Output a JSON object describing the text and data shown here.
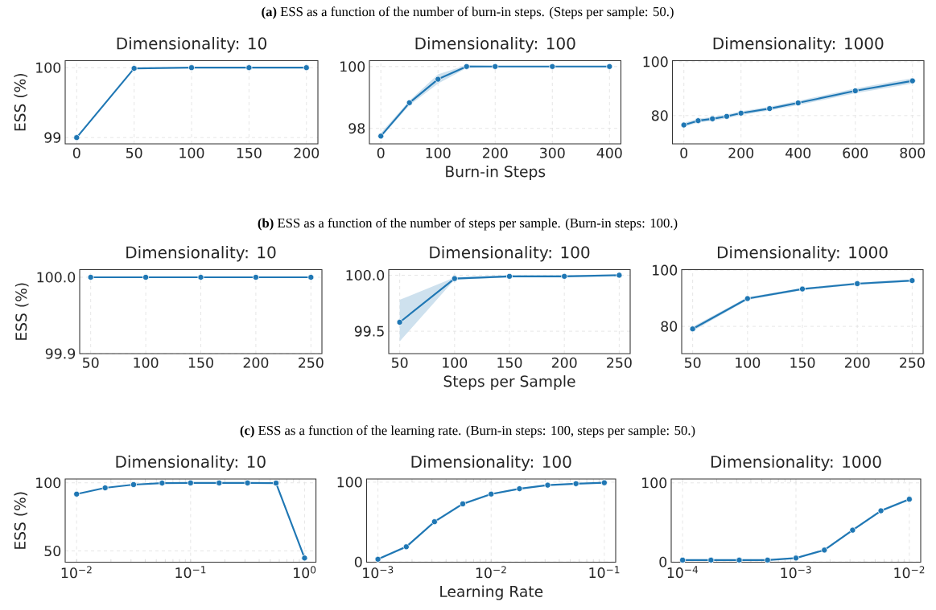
{
  "chart_data": [
    {
      "type": "line",
      "title": "Dimensionality: 10",
      "ylabel": "ESS (%)",
      "annotations": [
        "**(a)** ESS as a function of the number of burn-in steps. (Steps per sample: 50.)"
      ],
      "x": [
        0,
        50,
        100,
        150,
        200
      ],
      "xlim": [
        -10,
        210
      ],
      "ylim": [
        98.91,
        100.1
      ],
      "xticks": [
        0,
        50,
        100,
        150,
        200
      ],
      "yticks": [
        99,
        100
      ],
      "grid": true,
      "marker": "circle",
      "series": [
        {
          "color": "#1f77b4",
          "values": [
            99.0,
            99.99,
            100.0,
            100.0,
            100.0
          ]
        }
      ]
    },
    {
      "type": "line",
      "title": "Dimensionality: 100",
      "xlabel": "Burn-in Steps",
      "x": [
        0,
        50,
        100,
        150,
        200,
        300,
        400
      ],
      "xlim": [
        -20,
        420
      ],
      "ylim": [
        97.5,
        100.19
      ],
      "xticks": [
        0,
        100,
        200,
        300,
        400
      ],
      "yticks": [
        98,
        100
      ],
      "grid": true,
      "marker": "circle",
      "series": [
        {
          "color": "#1f77b4",
          "values": [
            97.75,
            98.83,
            99.59,
            100.0,
            100.0,
            100.0,
            100.0
          ],
          "lower": [
            97.7,
            98.75,
            99.45,
            99.95,
            99.98,
            99.98,
            99.98
          ],
          "upper": [
            97.85,
            98.9,
            99.75,
            100.05,
            100.02,
            100.02,
            100.02
          ]
        }
      ]
    },
    {
      "type": "line",
      "title": "Dimensionality: 1000",
      "x": [
        0,
        50,
        100,
        150,
        200,
        300,
        400,
        600,
        800
      ],
      "xlim": [
        -40,
        840
      ],
      "ylim": [
        69.5,
        100.4
      ],
      "xticks": [
        0,
        200,
        400,
        600,
        800
      ],
      "yticks": [
        80,
        100
      ],
      "grid": true,
      "marker": "circle",
      "series": [
        {
          "color": "#1f77b4",
          "values": [
            76.5,
            78.1,
            78.8,
            79.7,
            80.9,
            82.6,
            84.7,
            89.2,
            92.9
          ],
          "lower": [
            75.8,
            77.4,
            78.1,
            79.0,
            80.2,
            81.9,
            83.9,
            88.3,
            91.9
          ],
          "upper": [
            77.3,
            78.8,
            79.5,
            80.4,
            81.6,
            83.3,
            85.5,
            90.1,
            93.9
          ]
        }
      ]
    },
    {
      "type": "line",
      "title": "Dimensionality: 10",
      "ylabel": "ESS (%)",
      "annotations": [
        "**(b)** ESS as a function of the number of steps per sample. (Burn-in steps: 100.)"
      ],
      "x": [
        50,
        100,
        150,
        200,
        250
      ],
      "xlim": [
        40,
        260
      ],
      "ylim": [
        99.9,
        100.01
      ],
      "xticks": [
        50,
        100,
        150,
        200,
        250
      ],
      "yticks": [
        {
          "value": 99.9,
          "label": "99.9"
        },
        {
          "value": 100,
          "label": "100.0"
        }
      ],
      "grid": true,
      "marker": "circle",
      "series": [
        {
          "color": "#1f77b4",
          "values": [
            100.0,
            100.0,
            100.0,
            100.0,
            100.0
          ]
        }
      ]
    },
    {
      "type": "line",
      "title": "Dimensionality: 100",
      "xlabel": "Steps per Sample",
      "x": [
        50,
        100,
        150,
        200,
        250
      ],
      "xlim": [
        40,
        260
      ],
      "ylim": [
        99.3,
        100.05
      ],
      "xticks": [
        50,
        100,
        150,
        200,
        250
      ],
      "yticks": [
        {
          "value": 99.5,
          "label": "99.5"
        },
        {
          "value": 100,
          "label": "100.0"
        }
      ],
      "grid": true,
      "marker": "circle",
      "series": [
        {
          "color": "#1f77b4",
          "values": [
            99.58,
            99.97,
            99.99,
            99.99,
            100.0
          ],
          "lower": [
            99.41,
            99.96,
            99.98,
            99.98,
            99.99
          ],
          "upper": [
            99.78,
            99.98,
            100.0,
            100.0,
            100.01
          ]
        }
      ]
    },
    {
      "type": "line",
      "title": "Dimensionality: 1000",
      "x": [
        50,
        100,
        150,
        200,
        250
      ],
      "xlim": [
        40,
        260
      ],
      "ylim": [
        70.3,
        100.2
      ],
      "xticks": [
        50,
        100,
        150,
        200,
        250
      ],
      "yticks": [
        80,
        100
      ],
      "grid": true,
      "marker": "circle",
      "series": [
        {
          "color": "#1f77b4",
          "values": [
            79.1,
            89.9,
            93.3,
            95.2,
            96.3
          ],
          "lower": [
            78.3,
            89.4,
            92.9,
            94.8,
            95.9
          ],
          "upper": [
            79.9,
            90.4,
            93.7,
            95.6,
            96.7
          ]
        }
      ]
    },
    {
      "type": "line",
      "title": "Dimensionality: 10",
      "ylabel": "ESS (%)",
      "annotations": [
        "**(c)** ESS as a function of the learning rate. (Burn-in steps: 100, steps per sample: 50.)"
      ],
      "log": "x",
      "x": [
        0.01,
        0.0178,
        0.0316,
        0.0562,
        0.1,
        0.178,
        0.316,
        0.562,
        1.0
      ],
      "xlim": [
        0.00794,
        1.259
      ],
      "ylim": [
        41.7,
        102.8
      ],
      "xticks": [
        {
          "value": 0.01,
          "label": "10$^{−2}$"
        },
        {
          "value": 0.1,
          "label": "10$^{−1}$"
        },
        {
          "value": 1,
          "label": "10$^{0}$"
        }
      ],
      "yticks": [
        50,
        100
      ],
      "grid": true,
      "marker": "circle",
      "series": [
        {
          "color": "#1f77b4",
          "values": [
            91.7,
            96.3,
            98.7,
            99.8,
            99.9,
            99.9,
            99.9,
            99.8,
            44.8
          ]
        }
      ]
    },
    {
      "type": "line",
      "title": "Dimensionality: 100",
      "xlabel": "Learning Rate",
      "log": "x",
      "x": [
        0.001,
        0.00178,
        0.00316,
        0.00562,
        0.01,
        0.0178,
        0.0316,
        0.0562,
        0.1
      ],
      "xlim": [
        0.000794,
        0.126
      ],
      "ylim": [
        -0.4,
        104
      ],
      "xticks": [
        {
          "value": 0.001,
          "label": "10$^{−3}$"
        },
        {
          "value": 0.01,
          "label": "10$^{−2}$"
        },
        {
          "value": 0.1,
          "label": "10$^{−1}$"
        }
      ],
      "yticks": [
        0,
        100
      ],
      "grid": true,
      "marker": "circle",
      "series": [
        {
          "color": "#1f77b4",
          "values": [
            3.4,
            19,
            50.4,
            72.8,
            85.1,
            91.8,
            96.3,
            98.1,
            99.3
          ],
          "lower": [
            2.4,
            17.5,
            48.9,
            71.3,
            84.1,
            91.0,
            95.6,
            97.6,
            98.9
          ],
          "upper": [
            4.4,
            20.5,
            51.9,
            74.3,
            86.1,
            92.6,
            97.0,
            98.6,
            99.7
          ]
        }
      ]
    },
    {
      "type": "line",
      "title": "Dimensionality: 1000",
      "log": "x",
      "x": [
        0.0001,
        0.000178,
        0.000316,
        0.000562,
        0.001,
        0.00178,
        0.00316,
        0.00562,
        0.01
      ],
      "xlim": [
        7.94e-05,
        0.0126
      ],
      "ylim": [
        -0.4,
        104.9
      ],
      "xticks": [
        {
          "value": 0.0001,
          "label": "10$^{−4}$"
        },
        {
          "value": 0.001,
          "label": "10$^{−3}$"
        },
        {
          "value": 0.01,
          "label": "10$^{−2}$"
        }
      ],
      "yticks": [
        0,
        100
      ],
      "grid": true,
      "marker": "circle",
      "series": [
        {
          "color": "#1f77b4",
          "values": [
            2.3,
            2.3,
            2.3,
            2.3,
            4.9,
            15,
            40.2,
            64.7,
            79.3
          ],
          "lower": [
            1.8,
            1.8,
            1.8,
            1.8,
            4.2,
            13.5,
            38.7,
            63.2,
            77.8
          ],
          "upper": [
            2.8,
            2.8,
            2.8,
            2.8,
            5.6,
            16.5,
            41.7,
            66.2,
            80.8
          ]
        }
      ]
    }
  ]
}
